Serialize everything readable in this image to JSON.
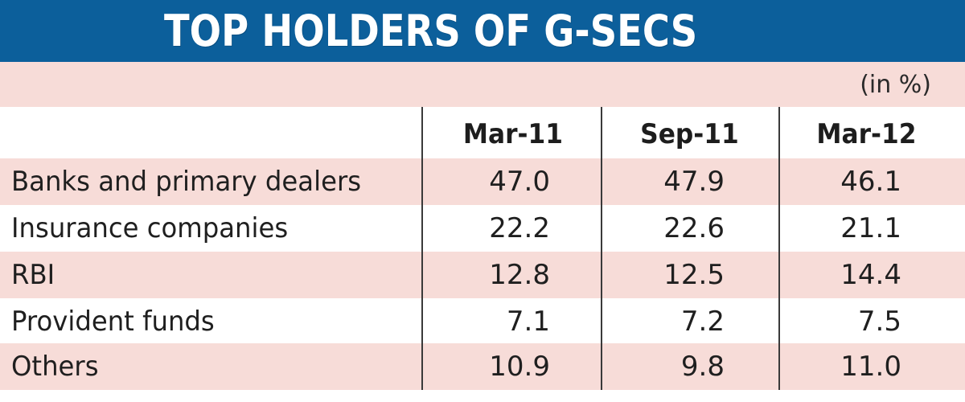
{
  "chart_data": {
    "type": "table",
    "title": "TOP HOLDERS OF G-SECS",
    "unit": "(in %)",
    "columns": [
      "Mar-11",
      "Sep-11",
      "Mar-12"
    ],
    "rows": [
      {
        "label": "Banks and primary dealers",
        "values": [
          "47.0",
          "47.9",
          "46.1"
        ]
      },
      {
        "label": "Insurance companies",
        "values": [
          "22.2",
          "22.6",
          "21.1"
        ]
      },
      {
        "label": "RBI",
        "values": [
          "12.8",
          "12.5",
          "14.4"
        ]
      },
      {
        "label": "Provident funds",
        "values": [
          "7.1",
          "7.2",
          "7.5"
        ]
      },
      {
        "label": "Others",
        "values": [
          "10.9",
          "9.8",
          "11.0"
        ]
      }
    ],
    "colors": {
      "title_bar": "#0c5f9b",
      "row_band": "#f7dcd8"
    }
  }
}
